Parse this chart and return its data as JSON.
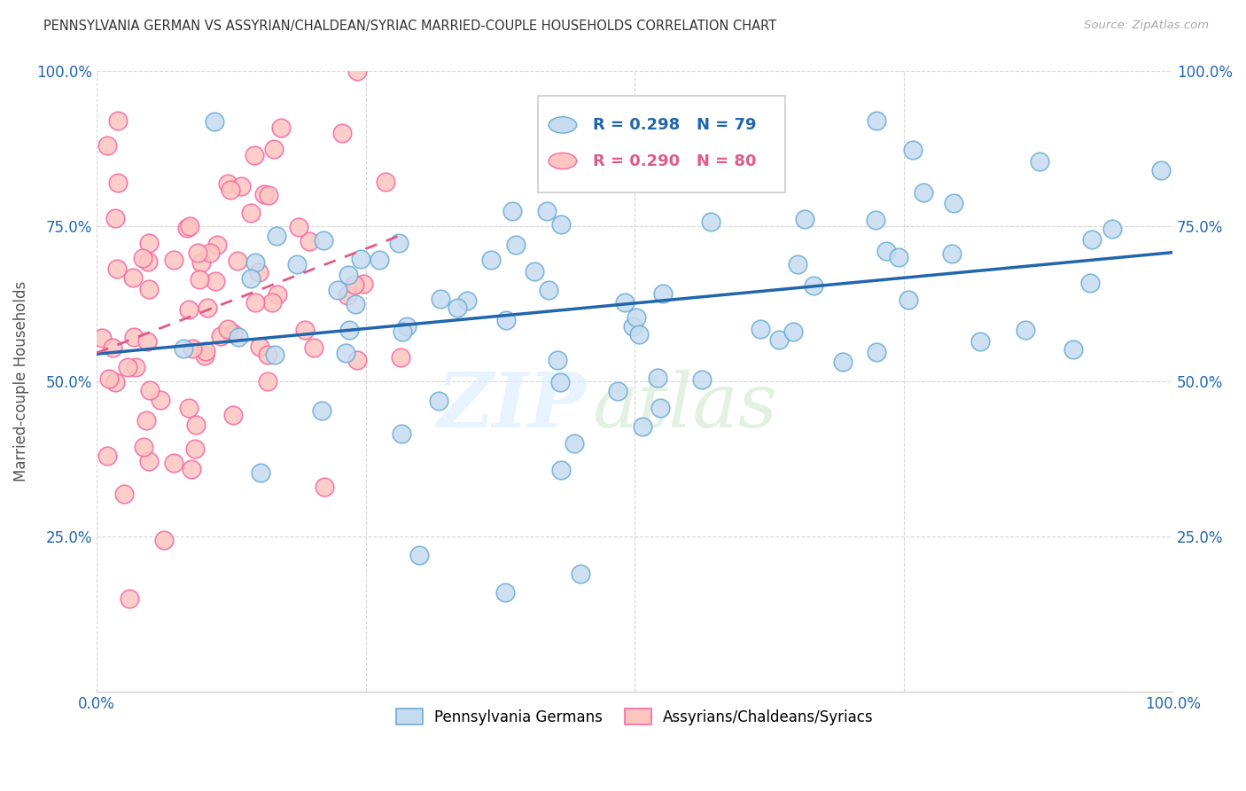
{
  "title": "PENNSYLVANIA GERMAN VS ASSYRIAN/CHALDEAN/SYRIAC MARRIED-COUPLE HOUSEHOLDS CORRELATION CHART",
  "source": "Source: ZipAtlas.com",
  "ylabel": "Married-couple Households",
  "xlim": [
    0.0,
    1.0
  ],
  "ylim": [
    0.0,
    1.0
  ],
  "yticks": [
    0.0,
    0.25,
    0.5,
    0.75,
    1.0
  ],
  "ytick_labels": [
    "",
    "25.0%",
    "50.0%",
    "75.0%",
    "100.0%"
  ],
  "blue_R": 0.298,
  "blue_N": 79,
  "pink_R": 0.29,
  "pink_N": 80,
  "legend_label_blue": "Pennsylvania Germans",
  "legend_label_pink": "Assyrians/Chaldeans/Syriacs",
  "watermark_zip": "ZIP",
  "watermark_atlas": "atlas",
  "title_color": "#333333",
  "blue_marker_face": "#c6dbef",
  "blue_marker_edge": "#6baed6",
  "pink_marker_face": "#fcc5c0",
  "pink_marker_edge": "#f768a1",
  "blue_line_color": "#2166ac",
  "pink_line_color": "#e05a8a",
  "axis_label_color": "#2166ac",
  "grid_color": "#cccccc",
  "source_color": "#aaaaaa"
}
